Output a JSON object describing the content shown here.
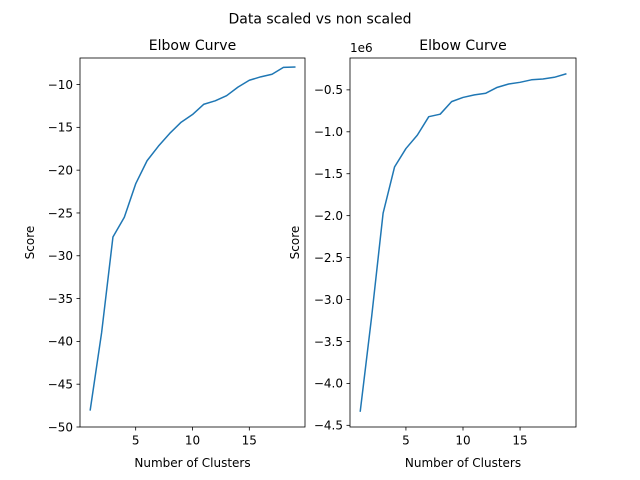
{
  "figure": {
    "suptitle": "Data scaled vs non scaled"
  },
  "chart_data": [
    {
      "type": "line",
      "title": "Elbow Curve",
      "xlabel": "Number of Clusters",
      "ylabel": "Score",
      "offset_text": "",
      "xlim": [
        0.1,
        19.9
      ],
      "ylim": [
        -50,
        -6.9
      ],
      "xticks": [
        5,
        10,
        15
      ],
      "xtick_labels": [
        "5",
        "10",
        "15"
      ],
      "yticks": [
        -50,
        -45,
        -40,
        -35,
        -30,
        -25,
        -20,
        -15,
        -10
      ],
      "ytick_labels": [
        "−50",
        "−45",
        "−40",
        "−35",
        "−30",
        "−25",
        "−20",
        "−15",
        "−10"
      ],
      "grid": false,
      "color": "#1f77b4",
      "series": [
        {
          "x": [
            1,
            2,
            3,
            4,
            5,
            6,
            7,
            8,
            9,
            10,
            11,
            12,
            13,
            14,
            15,
            16,
            17,
            18,
            19
          ],
          "values": [
            -48.0,
            -39.0,
            -27.8,
            -25.5,
            -21.6,
            -18.9,
            -17.2,
            -15.7,
            -14.4,
            -13.5,
            -12.3,
            -11.9,
            -11.3,
            -10.3,
            -9.5,
            -9.1,
            -8.8,
            -8.0,
            -7.95
          ]
        }
      ]
    },
    {
      "type": "line",
      "title": "Elbow Curve",
      "xlabel": "Number of Clusters",
      "ylabel": "Score",
      "offset_text": "1e6",
      "xlim": [
        0.1,
        19.9
      ],
      "ylim": [
        -4.52,
        -0.12
      ],
      "xticks": [
        5,
        10,
        15
      ],
      "xtick_labels": [
        "5",
        "10",
        "15"
      ],
      "yticks": [
        -4.5,
        -4.0,
        -3.5,
        -3.0,
        -2.5,
        -2.0,
        -1.5,
        -1.0,
        -0.5
      ],
      "ytick_labels": [
        "−4.5",
        "−4.0",
        "−3.5",
        "−3.0",
        "−2.5",
        "−2.0",
        "−1.5",
        "−1.0",
        "−0.5"
      ],
      "grid": false,
      "color": "#1f77b4",
      "series": [
        {
          "x": [
            1,
            2,
            3,
            4,
            5,
            6,
            7,
            8,
            9,
            10,
            11,
            12,
            13,
            14,
            15,
            16,
            17,
            18,
            19
          ],
          "values": [
            -4.33,
            -3.2,
            -1.97,
            -1.42,
            -1.2,
            -1.04,
            -0.82,
            -0.79,
            -0.64,
            -0.59,
            -0.56,
            -0.54,
            -0.47,
            -0.43,
            -0.41,
            -0.38,
            -0.37,
            -0.35,
            -0.31
          ]
        }
      ]
    }
  ]
}
